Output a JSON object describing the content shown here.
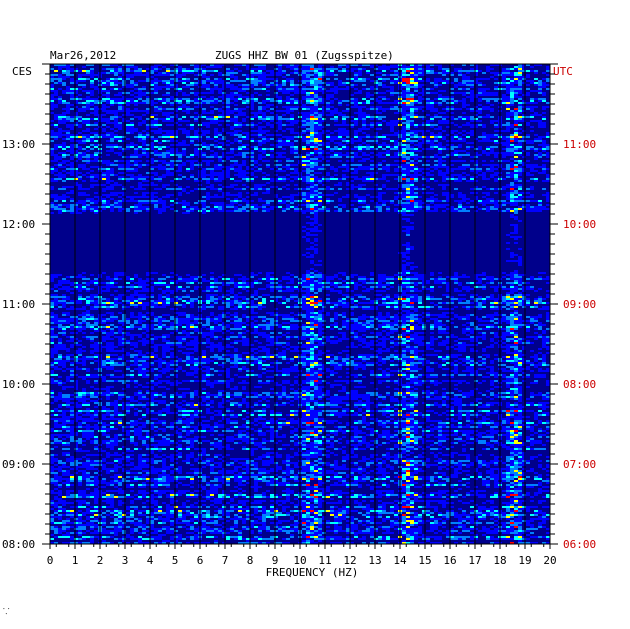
{
  "header": {
    "date": "Mar26,2012",
    "station": "ZUGS HHZ BW 01 (Zugsspitze)"
  },
  "left_zone_label": "CES",
  "right_zone_label": "UTC",
  "footer_mark": "⸪",
  "colors": {
    "background_plot": "#00008b",
    "left_labels": "#000000",
    "right_labels": "#cc0000",
    "grid": "#000000"
  },
  "chart_data": {
    "type": "heatmap",
    "title": "ZUGS HHZ BW 01 (Zugsspitze)",
    "xlabel": "FREQUENCY (HZ)",
    "ylabel": "",
    "xlim": [
      0,
      20
    ],
    "x_ticks": [
      "0",
      "1",
      "2",
      "3",
      "4",
      "5",
      "6",
      "7",
      "8",
      "9",
      "10",
      "11",
      "12",
      "13",
      "14",
      "15",
      "16",
      "17",
      "18",
      "19",
      "20"
    ],
    "left_time_ticks": [
      "13:00",
      "12:00",
      "11:00",
      "10:00",
      "09:00",
      "08:00"
    ],
    "right_time_ticks": [
      "11:00",
      "10:00",
      "09:00",
      "08:00",
      "07:00",
      "06:00"
    ],
    "time_range_local": [
      "08:00",
      "14:00"
    ],
    "grid": true,
    "colormap": [
      "#00008b",
      "#0000ff",
      "#0080ff",
      "#00ffff",
      "#ffff00",
      "#ff0000"
    ],
    "persistent_bands_hz": [
      10.5,
      14.3,
      18.6
    ]
  }
}
